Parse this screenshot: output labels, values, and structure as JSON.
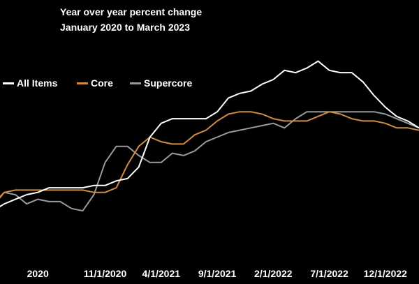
{
  "chart_data": {
    "type": "line",
    "title": "Year over year percent change",
    "subtitle": "January 2020 to March 2023",
    "xlabel": "",
    "ylabel": "",
    "x_ticks": [
      "2020",
      "11/1/2020",
      "4/1/2021",
      "9/1/2021",
      "2/1/2022",
      "7/1/2022",
      "12/1/2022"
    ],
    "x_tick_index": [
      4,
      10,
      15,
      20,
      25,
      30,
      35
    ],
    "x_range": [
      0,
      38
    ],
    "ylim": [
      0,
      10
    ],
    "grid": false,
    "legend": "left, below title",
    "series": [
      {
        "name": "All Items",
        "color": "#ffffff",
        "values": [
          2.3,
          2.6,
          2.8,
          3.0,
          3.1,
          3.3,
          3.3,
          3.3,
          3.3,
          3.4,
          3.4,
          3.6,
          3.7,
          4.2,
          5.5,
          6.1,
          6.3,
          6.3,
          6.3,
          6.3,
          6.6,
          7.2,
          7.4,
          7.5,
          7.8,
          8.0,
          8.4,
          8.3,
          8.5,
          8.8,
          8.4,
          8.3,
          8.3,
          7.9,
          7.3,
          6.8,
          6.4,
          6.2,
          5.9
        ]
      },
      {
        "name": "Core",
        "color": "#d08c40",
        "values": [
          2.6,
          3.1,
          3.2,
          3.2,
          3.2,
          3.2,
          3.2,
          3.2,
          3.2,
          3.1,
          3.1,
          3.3,
          4.3,
          5.1,
          5.5,
          5.3,
          5.2,
          5.2,
          5.6,
          5.8,
          6.2,
          6.5,
          6.6,
          6.6,
          6.5,
          6.3,
          6.2,
          6.2,
          6.2,
          6.4,
          6.6,
          6.5,
          6.3,
          6.2,
          6.2,
          6.1,
          5.9,
          5.9,
          5.8
        ]
      },
      {
        "name": "Supercore",
        "color": "#9a9a9a",
        "values": [
          2.5,
          3.1,
          3.0,
          2.6,
          2.8,
          2.7,
          2.7,
          2.4,
          2.3,
          3.0,
          4.4,
          5.1,
          5.1,
          4.7,
          4.4,
          4.4,
          4.8,
          4.7,
          4.9,
          5.3,
          5.5,
          5.7,
          5.8,
          5.9,
          6.0,
          6.1,
          5.9,
          6.3,
          6.6,
          6.6,
          6.6,
          6.6,
          6.6,
          6.6,
          6.6,
          6.5,
          6.3,
          6.1,
          5.9
        ]
      }
    ]
  }
}
